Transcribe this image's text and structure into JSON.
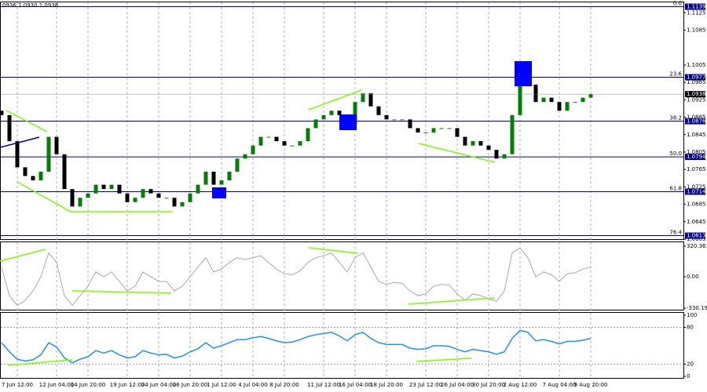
{
  "header": "0936 1.0930 1.0938",
  "chart_data": [
    {
      "type": "candlestick",
      "categories": [
        null,
        null,
        "7 Jun 12:00",
        null,
        null,
        null,
        null,
        "12 Jun 04:00",
        null,
        null,
        null,
        "14 Jun 20:00",
        null,
        null,
        null,
        null,
        "19 Jun 12:00",
        null,
        null,
        null,
        "24 Jun 04:00",
        null,
        null,
        null,
        "26 Jun 20:00",
        null,
        null,
        null,
        "1 Jul 12:00",
        null,
        null,
        null,
        "4 Jul 04:00",
        null,
        null,
        null,
        "8 Jul 20:00",
        null,
        null,
        null,
        null,
        "11 Jul 12:00",
        null,
        null,
        null,
        "16 Jul 04:00",
        null,
        null,
        null,
        "18 Jul 20:00",
        null,
        null,
        null,
        null,
        "23 Jul 12:00",
        null,
        null,
        null,
        "26 Jul 04:00",
        null,
        null,
        null,
        "30 Jul 20:00",
        null,
        null,
        null,
        "2 Aug 12:00",
        null,
        null,
        null,
        null,
        "7 Aug 04:00",
        null,
        null,
        null,
        "9 Aug 20:00"
      ],
      "open": [
        1.09,
        1.089,
        1.083,
        1.077,
        1.075,
        1.074,
        1.076,
        1.084,
        1.08,
        1.072,
        1.068,
        1.07,
        1.071,
        1.073,
        1.072,
        1.073,
        1.071,
        1.069,
        1.07,
        1.072,
        1.071,
        1.07,
        1.07,
        1.068,
        1.069,
        1.071,
        1.073,
        1.076,
        1.073,
        1.074,
        1.076,
        1.079,
        1.08,
        1.082,
        1.084,
        1.084,
        1.083,
        1.082,
        1.082,
        1.083,
        1.086,
        1.088,
        1.089,
        1.09,
        1.089,
        1.087,
        1.092,
        1.094,
        1.091,
        1.089,
        1.088,
        1.088,
        1.088,
        1.086,
        1.085,
        1.085,
        1.086,
        1.086,
        1.086,
        1.084,
        1.082,
        1.083,
        1.082,
        1.081,
        1.079,
        1.08,
        1.089,
        1.096,
        1.096,
        1.092,
        1.093,
        1.092,
        1.09,
        1.092,
        1.092,
        1.093
      ],
      "close": [
        1.089,
        1.083,
        1.077,
        1.075,
        1.074,
        1.076,
        1.084,
        1.08,
        1.072,
        1.068,
        1.07,
        1.071,
        1.073,
        1.072,
        1.073,
        1.071,
        1.069,
        1.07,
        1.072,
        1.071,
        1.07,
        1.07,
        1.068,
        1.069,
        1.071,
        1.073,
        1.076,
        1.073,
        1.074,
        1.076,
        1.079,
        1.08,
        1.082,
        1.084,
        1.084,
        1.083,
        1.082,
        1.082,
        1.083,
        1.086,
        1.088,
        1.089,
        1.09,
        1.089,
        1.087,
        1.092,
        1.094,
        1.091,
        1.089,
        1.088,
        1.088,
        1.088,
        1.086,
        1.085,
        1.085,
        1.086,
        1.086,
        1.086,
        1.084,
        1.082,
        1.083,
        1.082,
        1.081,
        1.079,
        1.08,
        1.089,
        1.096,
        1.096,
        1.092,
        1.093,
        1.092,
        1.09,
        1.092,
        1.092,
        1.093,
        1.0938
      ],
      "up_color": "#008000",
      "down_color": "#000000",
      "ylim": [
        1.0605,
        1.1149
      ],
      "yticks": [
        1.1125,
        1.1085,
        1.1005,
        1.0965,
        1.0925,
        1.0885,
        1.0845,
        1.0805,
        1.0765,
        1.0725,
        1.0685,
        1.0645,
        1.0605
      ],
      "levels": [
        {
          "name": "0.0",
          "value": 1.1139
        },
        {
          "name": "23.6",
          "value": 1.0977
        },
        {
          "name": "38.2",
          "value": 1.0876
        },
        {
          "name": "50.0",
          "value": 1.0794
        },
        {
          "name": "61.8",
          "value": 1.0714
        },
        {
          "name": "76.4",
          "value": 1.0613
        }
      ],
      "level_color": "#00008b",
      "last_price": 1.0938
    },
    {
      "type": "line",
      "color": "#aaaaaa",
      "values": [
        100,
        -200,
        -300,
        -250,
        -150,
        0,
        250,
        150,
        -200,
        -300,
        -200,
        -100,
        50,
        0,
        50,
        -50,
        -150,
        -100,
        50,
        0,
        -50,
        -50,
        -150,
        -100,
        0,
        100,
        200,
        50,
        80,
        150,
        200,
        180,
        200,
        220,
        150,
        80,
        30,
        20,
        60,
        150,
        200,
        220,
        250,
        150,
        50,
        200,
        250,
        100,
        -50,
        -80,
        -60,
        -70,
        -150,
        -200,
        -180,
        -100,
        -80,
        -90,
        -180,
        -250,
        -180,
        -200,
        -230,
        -260,
        -150,
        250,
        300,
        200,
        0,
        50,
        20,
        -50,
        30,
        40,
        80,
        100
      ],
      "ylim": [
        -347,
        370
      ],
      "yticks": [
        320.3615,
        {
          "value": 0,
          "label": "0.00"
        },
        -330.193
      ]
    },
    {
      "type": "line",
      "color": "#1e90ff",
      "values": [
        55,
        40,
        28,
        25,
        27,
        35,
        55,
        48,
        30,
        22,
        28,
        32,
        42,
        38,
        42,
        35,
        30,
        32,
        42,
        38,
        35,
        36,
        30,
        33,
        40,
        45,
        55,
        46,
        50,
        55,
        60,
        60,
        63,
        65,
        62,
        58,
        55,
        56,
        60,
        65,
        68,
        70,
        72,
        66,
        58,
        68,
        72,
        62,
        55,
        52,
        52,
        52,
        46,
        44,
        45,
        50,
        50,
        49,
        44,
        40,
        44,
        42,
        40,
        36,
        40,
        62,
        75,
        72,
        58,
        60,
        57,
        53,
        57,
        57,
        59,
        62
      ],
      "ylim": [
        -2.6,
        105.1
      ],
      "yticks": [
        100,
        80,
        20,
        0
      ]
    }
  ]
}
